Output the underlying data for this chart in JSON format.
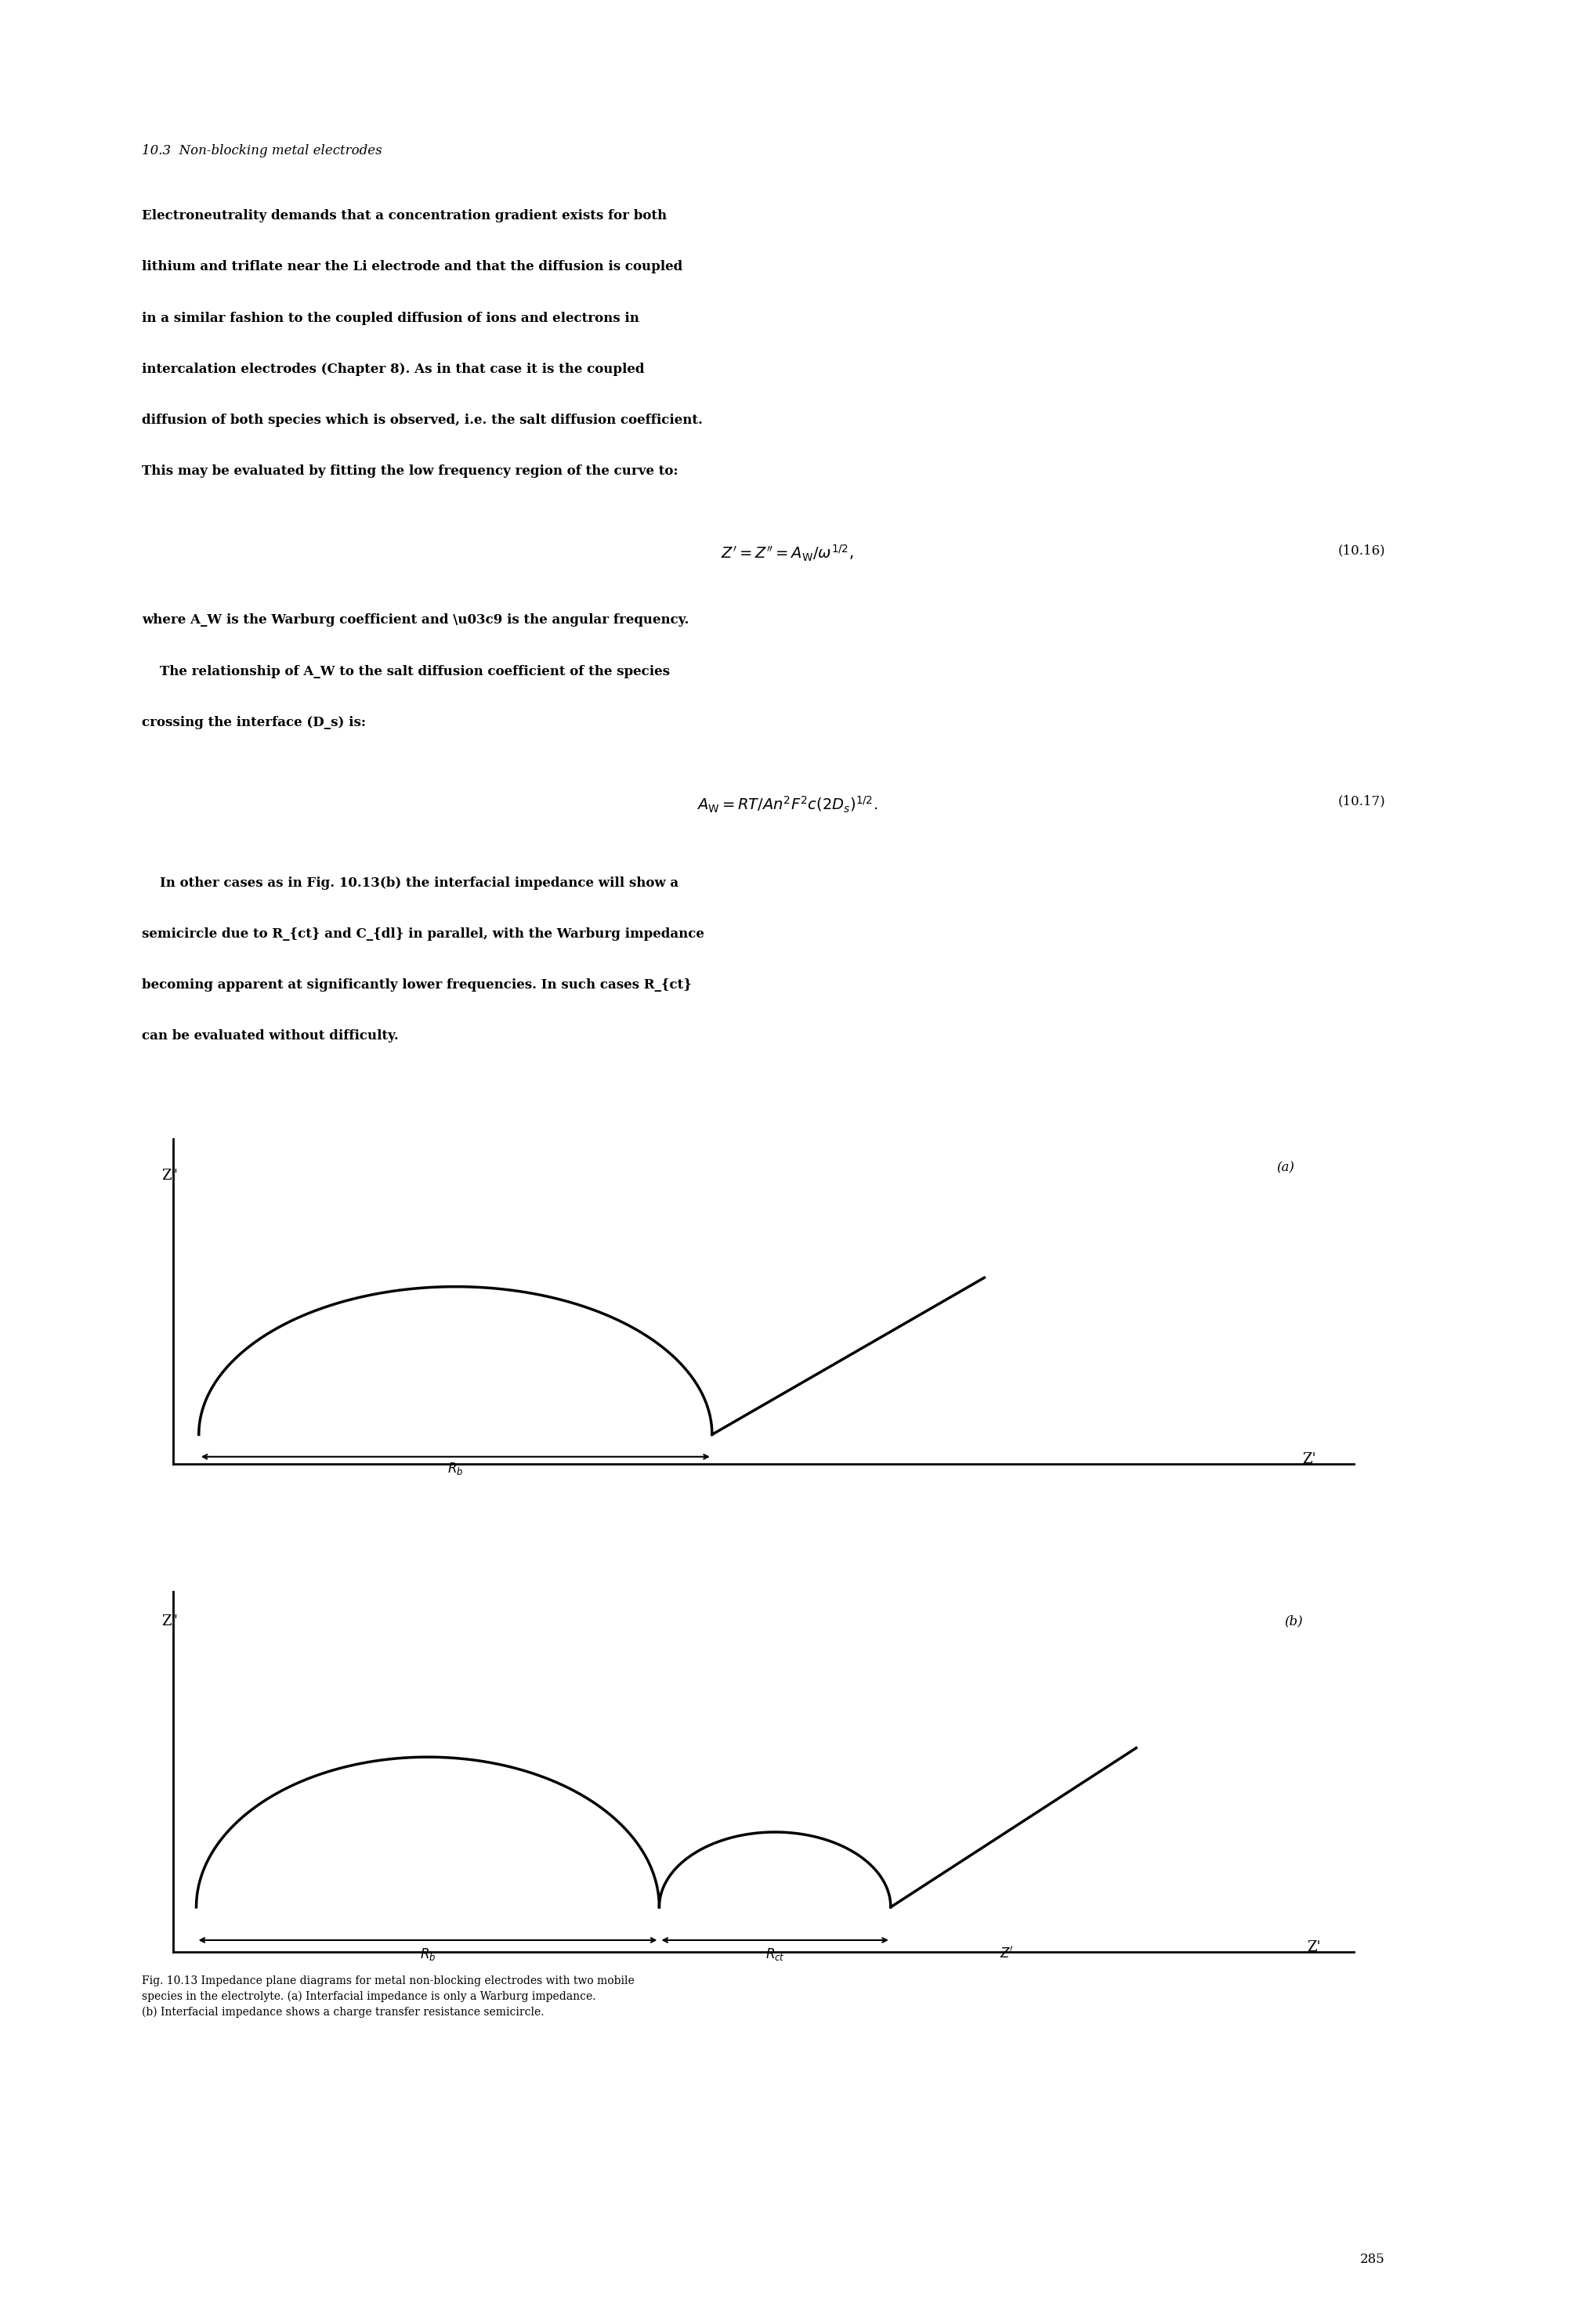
{
  "page_width": 20.09,
  "page_height": 29.67,
  "background_color": "#ffffff",
  "text_color": "#000000",
  "section_title": "10.3  Non-blocking metal electrodes",
  "body_text": [
    "Electroneutrality demands that a concentration gradient exists for both",
    "lithium and triflate near the Li electrode and that the diffusion is coupled",
    "in a similar fashion to the coupled diffusion of ions and electrons in",
    "intercalation electrodes (Chapter 8). As in that case it is the coupled",
    "diffusion of both species which is observed, i.e. the salt diffusion coefficient.",
    "This may be evaluated by fitting the low frequency region of the curve to:"
  ],
  "eq1": "Z\\' = Z\\\" = A_W/\\u03c9^{1/2},",
  "eq1_num": "(10.16)",
  "text2": [
    "where A_W is the Warburg coefficient and \\u03c9 is the angular frequency.",
    "    The relationship of A_W to the salt diffusion coefficient of the species",
    "crossing the interface (D_s) is:"
  ],
  "eq2": "A_W = RT/An^2F^2c(2D_s)^{1/2}.",
  "eq2_num": "(10.17)",
  "text3": [
    "    In other cases as in Fig. 10.13(b) the interfacial impedance will show a",
    "semicircle due to R_{ct} and C_{dl} in parallel, with the Warburg impedance",
    "becoming apparent at significantly lower frequencies. In such cases R_{ct}",
    "can be evaluated without difficulty."
  ],
  "label_a": "(a)",
  "label_b": "(b)",
  "ylabel_a": "Z\"",
  "ylabel_b": "Z\"",
  "xlabel_a": "Z'",
  "xlabel_b": "Z'",
  "rb_label": "R_b",
  "rct_label": "R_ct",
  "fig_caption": "Fig. 10.13 Impedance plane diagrams for metal non-blocking electrodes with two mobile\nspecies in the electrolyte. (a) Interfacial impedance is only a Warburg impedance.\n(b) Interfacial impedance shows a charge transfer resistance semicircle.",
  "page_num": "285",
  "line_color": "#000000",
  "line_width": 2.5,
  "axis_linewidth": 2.0
}
